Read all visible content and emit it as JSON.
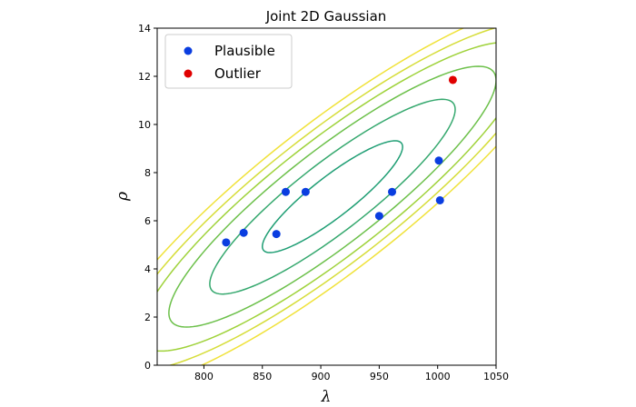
{
  "chart_data": {
    "type": "scatter",
    "title": "Joint 2D Gaussian",
    "xlabel": "λ",
    "ylabel": "ρ",
    "xlim": [
      760,
      1050
    ],
    "ylim": [
      0,
      14
    ],
    "xticks": [
      800,
      850,
      900,
      950,
      1000,
      1050
    ],
    "yticks": [
      0,
      2,
      4,
      6,
      8,
      10,
      12,
      14
    ],
    "grid": false,
    "legend_position": "upper-left",
    "series": [
      {
        "name": "Plausible",
        "color": "#0a3de0",
        "points": [
          {
            "x": 819,
            "y": 5.1
          },
          {
            "x": 834,
            "y": 5.5
          },
          {
            "x": 862,
            "y": 5.45
          },
          {
            "x": 870,
            "y": 7.2
          },
          {
            "x": 887,
            "y": 7.2
          },
          {
            "x": 950,
            "y": 6.2
          },
          {
            "x": 961,
            "y": 7.2
          },
          {
            "x": 1001,
            "y": 8.5
          },
          {
            "x": 1002,
            "y": 6.85
          }
        ]
      },
      {
        "name": "Outlier",
        "color": "#e00000",
        "points": [
          {
            "x": 1013,
            "y": 11.85
          }
        ]
      }
    ],
    "contours": {
      "center": {
        "x": 910,
        "y": 7.0
      },
      "levels": [
        {
          "semi_major_lambda": 60,
          "color": "#1f9e74"
        },
        {
          "semi_major_lambda": 105,
          "color": "#35a86e"
        },
        {
          "semi_major_lambda": 140,
          "color": "#6cc04a"
        },
        {
          "semi_major_lambda": 165,
          "color": "#9fd23a"
        },
        {
          "semi_major_lambda": 185,
          "color": "#d6dd3a"
        },
        {
          "semi_major_lambda": 205,
          "color": "#f0e23a"
        }
      ],
      "slope_rho_per_lambda": 0.0345,
      "minor_rho": [
        1.05,
        1.8,
        2.45,
        2.95,
        3.35,
        3.75
      ]
    }
  }
}
